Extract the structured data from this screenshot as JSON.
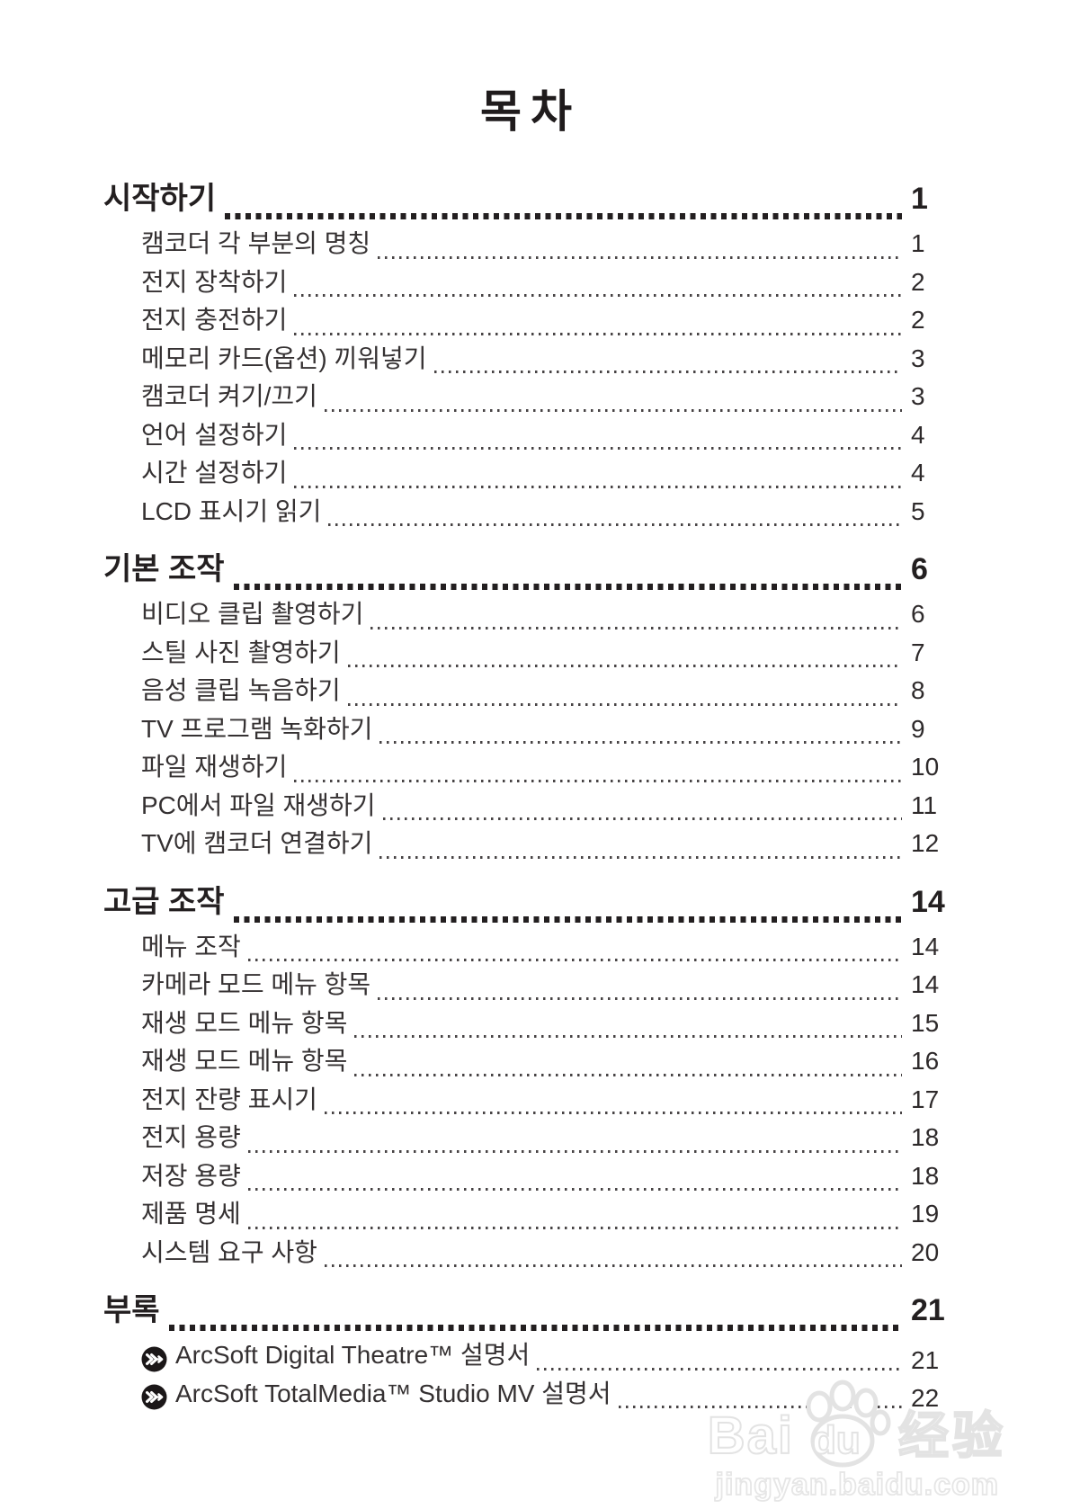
{
  "page_title": "목차",
  "sections": [
    {
      "title": "시작하기",
      "page": "1",
      "items": [
        {
          "label": "캠코더 각 부분의 명칭",
          "page": "1"
        },
        {
          "label": "전지 장착하기",
          "page": "2"
        },
        {
          "label": "전지 충전하기",
          "page": "2"
        },
        {
          "label": "메모리 카드(옵션) 끼워넣기",
          "page": "3"
        },
        {
          "label": "캠코더 켜기/끄기",
          "page": "3"
        },
        {
          "label": "언어 설정하기",
          "page": "4"
        },
        {
          "label": "시간 설정하기",
          "page": "4"
        },
        {
          "label": "LCD 표시기 읽기",
          "page": "5"
        }
      ]
    },
    {
      "title": "기본 조작",
      "page": "6",
      "items": [
        {
          "label": "비디오 클립 촬영하기",
          "page": "6"
        },
        {
          "label": "스틸 사진 촬영하기",
          "page": "7"
        },
        {
          "label": "음성 클립 녹음하기",
          "page": "8"
        },
        {
          "label": "TV 프로그램 녹화하기",
          "page": "9"
        },
        {
          "label": "파일 재생하기",
          "page": "10"
        },
        {
          "label": "PC에서 파일 재생하기",
          "page": "11"
        },
        {
          "label": "TV에 캠코더 연결하기",
          "page": "12"
        }
      ]
    },
    {
      "title": "고급 조작",
      "page": "14",
      "items": [
        {
          "label": "메뉴 조작",
          "page": "14"
        },
        {
          "label": "카메라 모드 메뉴 항목",
          "page": "14"
        },
        {
          "label": "재생 모드 메뉴 항목",
          "page": "15"
        },
        {
          "label": "재생 모드 메뉴 항목",
          "page": "16"
        },
        {
          "label": "전지 잔량 표시기",
          "page": "17"
        },
        {
          "label": "전지 용량",
          "page": "18"
        },
        {
          "label": "저장 용량",
          "page": "18"
        },
        {
          "label": "제품 명세",
          "page": "19"
        },
        {
          "label": "시스템 요구 사항",
          "page": "20"
        }
      ]
    },
    {
      "title": "부록",
      "page": "21",
      "items": [
        {
          "label": "ArcSoft Digital Theatre™ 설명서",
          "page": "21",
          "icon": "next-arrow-badge"
        },
        {
          "label": "ArcSoft TotalMedia™ Studio MV 설명서",
          "page": "22",
          "icon": "next-arrow-badge"
        }
      ]
    }
  ],
  "watermark": {
    "logo_bai": "Bai",
    "logo_du": "du",
    "logo_cn": "经验",
    "url": "jingyan.baidu.com",
    "paw_icon": "baidu-paw-icon"
  },
  "colors": {
    "text": "#231f20",
    "item_text": "#353132",
    "badge": "#1b1718",
    "watermark_stroke": "#e3e3e3",
    "background": "#ffffff"
  }
}
